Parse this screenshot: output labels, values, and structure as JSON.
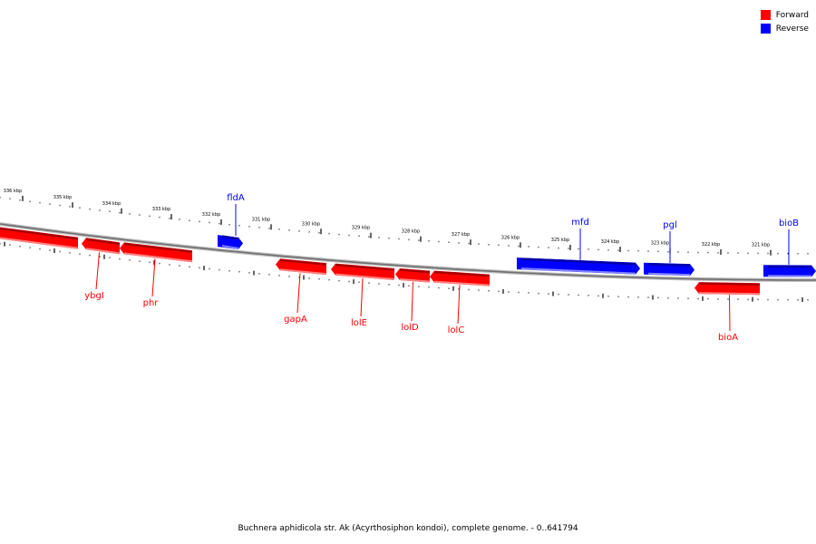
{
  "legend": {
    "forward_label": "Forward",
    "reverse_label": "Reverse",
    "forward_color": "#ff0000",
    "reverse_color": "#0000ff"
  },
  "caption": "Buchnera aphidicola str. Ak (Acyrthosiphon kondoi), complete genome. - 0..641794",
  "scale_labels": [
    "336 kbp",
    "335 kbp",
    "334 kbp",
    "333 kbp",
    "332 kbp",
    "331 kbp",
    "330 kbp",
    "329 kbp",
    "328 kbp",
    "327 kbp",
    "326 kbp",
    "325 kbp",
    "324 kbp",
    "323 kbp",
    "322 kbp",
    "321 kbp"
  ],
  "genes": [
    {
      "name": "ybgI",
      "strand": "forward",
      "labeled": true
    },
    {
      "name": "phr",
      "strand": "forward",
      "labeled": true
    },
    {
      "name": "fldA",
      "strand": "reverse",
      "labeled": true
    },
    {
      "name": "gapA",
      "strand": "forward",
      "labeled": true
    },
    {
      "name": "lolE",
      "strand": "forward",
      "labeled": true
    },
    {
      "name": "lolD",
      "strand": "forward",
      "labeled": true
    },
    {
      "name": "lolC",
      "strand": "forward",
      "labeled": true
    },
    {
      "name": "mfd",
      "strand": "reverse",
      "labeled": true
    },
    {
      "name": "pgl",
      "strand": "reverse",
      "labeled": true
    },
    {
      "name": "bioA",
      "strand": "forward",
      "labeled": true
    },
    {
      "name": "bioB",
      "strand": "reverse",
      "labeled": true
    }
  ]
}
